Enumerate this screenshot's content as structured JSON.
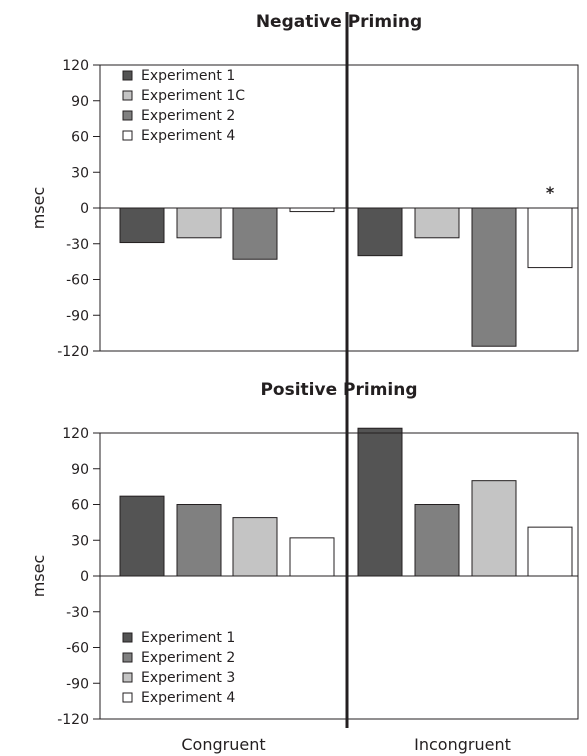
{
  "colors": {
    "experiment_1": "#545454",
    "experiment_1c": "#c4c4c4",
    "experiment_2": "#808080",
    "experiment_3": "#c4c4c4",
    "experiment_4": "#ffffff",
    "outline": "#231f20"
  },
  "chart_data": [
    {
      "type": "bar",
      "title": "Negative Priming",
      "xlabel": "",
      "ylabel": "msec",
      "ylim": [
        -120,
        120
      ],
      "yticks": [
        120,
        90,
        60,
        30,
        0,
        -30,
        -60,
        -90,
        -120
      ],
      "categories": [
        "Congruent",
        "Incongruent"
      ],
      "show_category_labels": false,
      "legend_position": "top-left",
      "grid": false,
      "series": [
        {
          "name": "Experiment 1",
          "color_key": "experiment_1",
          "values": [
            -29,
            -40
          ]
        },
        {
          "name": "Experiment 1C",
          "color_key": "experiment_1c",
          "values": [
            -25,
            -25
          ]
        },
        {
          "name": "Experiment 2",
          "color_key": "experiment_2",
          "values": [
            -43,
            -116
          ]
        },
        {
          "name": "Experiment 4",
          "color_key": "experiment_4",
          "values": [
            -3,
            -50
          ]
        }
      ],
      "bar_series_order": [
        "Experiment 1",
        "Experiment 1C",
        "Experiment 2",
        "Experiment 4"
      ],
      "annotations": [
        {
          "text": "*",
          "category": "Incongruent",
          "series": "Experiment 4"
        }
      ]
    },
    {
      "type": "bar",
      "title": "Positive Priming",
      "xlabel": "",
      "ylabel": "msec",
      "ylim": [
        -120,
        120
      ],
      "yticks": [
        120,
        90,
        60,
        30,
        0,
        -30,
        -60,
        -90,
        -120
      ],
      "categories": [
        "Congruent",
        "Incongruent"
      ],
      "show_category_labels": true,
      "legend_position": "bottom-left",
      "grid": false,
      "series": [
        {
          "name": "Experiment 1",
          "color_key": "experiment_1",
          "values": [
            67,
            124
          ]
        },
        {
          "name": "Experiment 2",
          "color_key": "experiment_2",
          "values": [
            60,
            60
          ]
        },
        {
          "name": "Experiment 3",
          "color_key": "experiment_3",
          "values": [
            49,
            80
          ]
        },
        {
          "name": "Experiment 4",
          "color_key": "experiment_4",
          "values": [
            32,
            41
          ]
        }
      ],
      "bar_series_order": [
        "Experiment 1",
        "Experiment 2",
        "Experiment 3",
        "Experiment 4"
      ],
      "annotations": []
    }
  ]
}
